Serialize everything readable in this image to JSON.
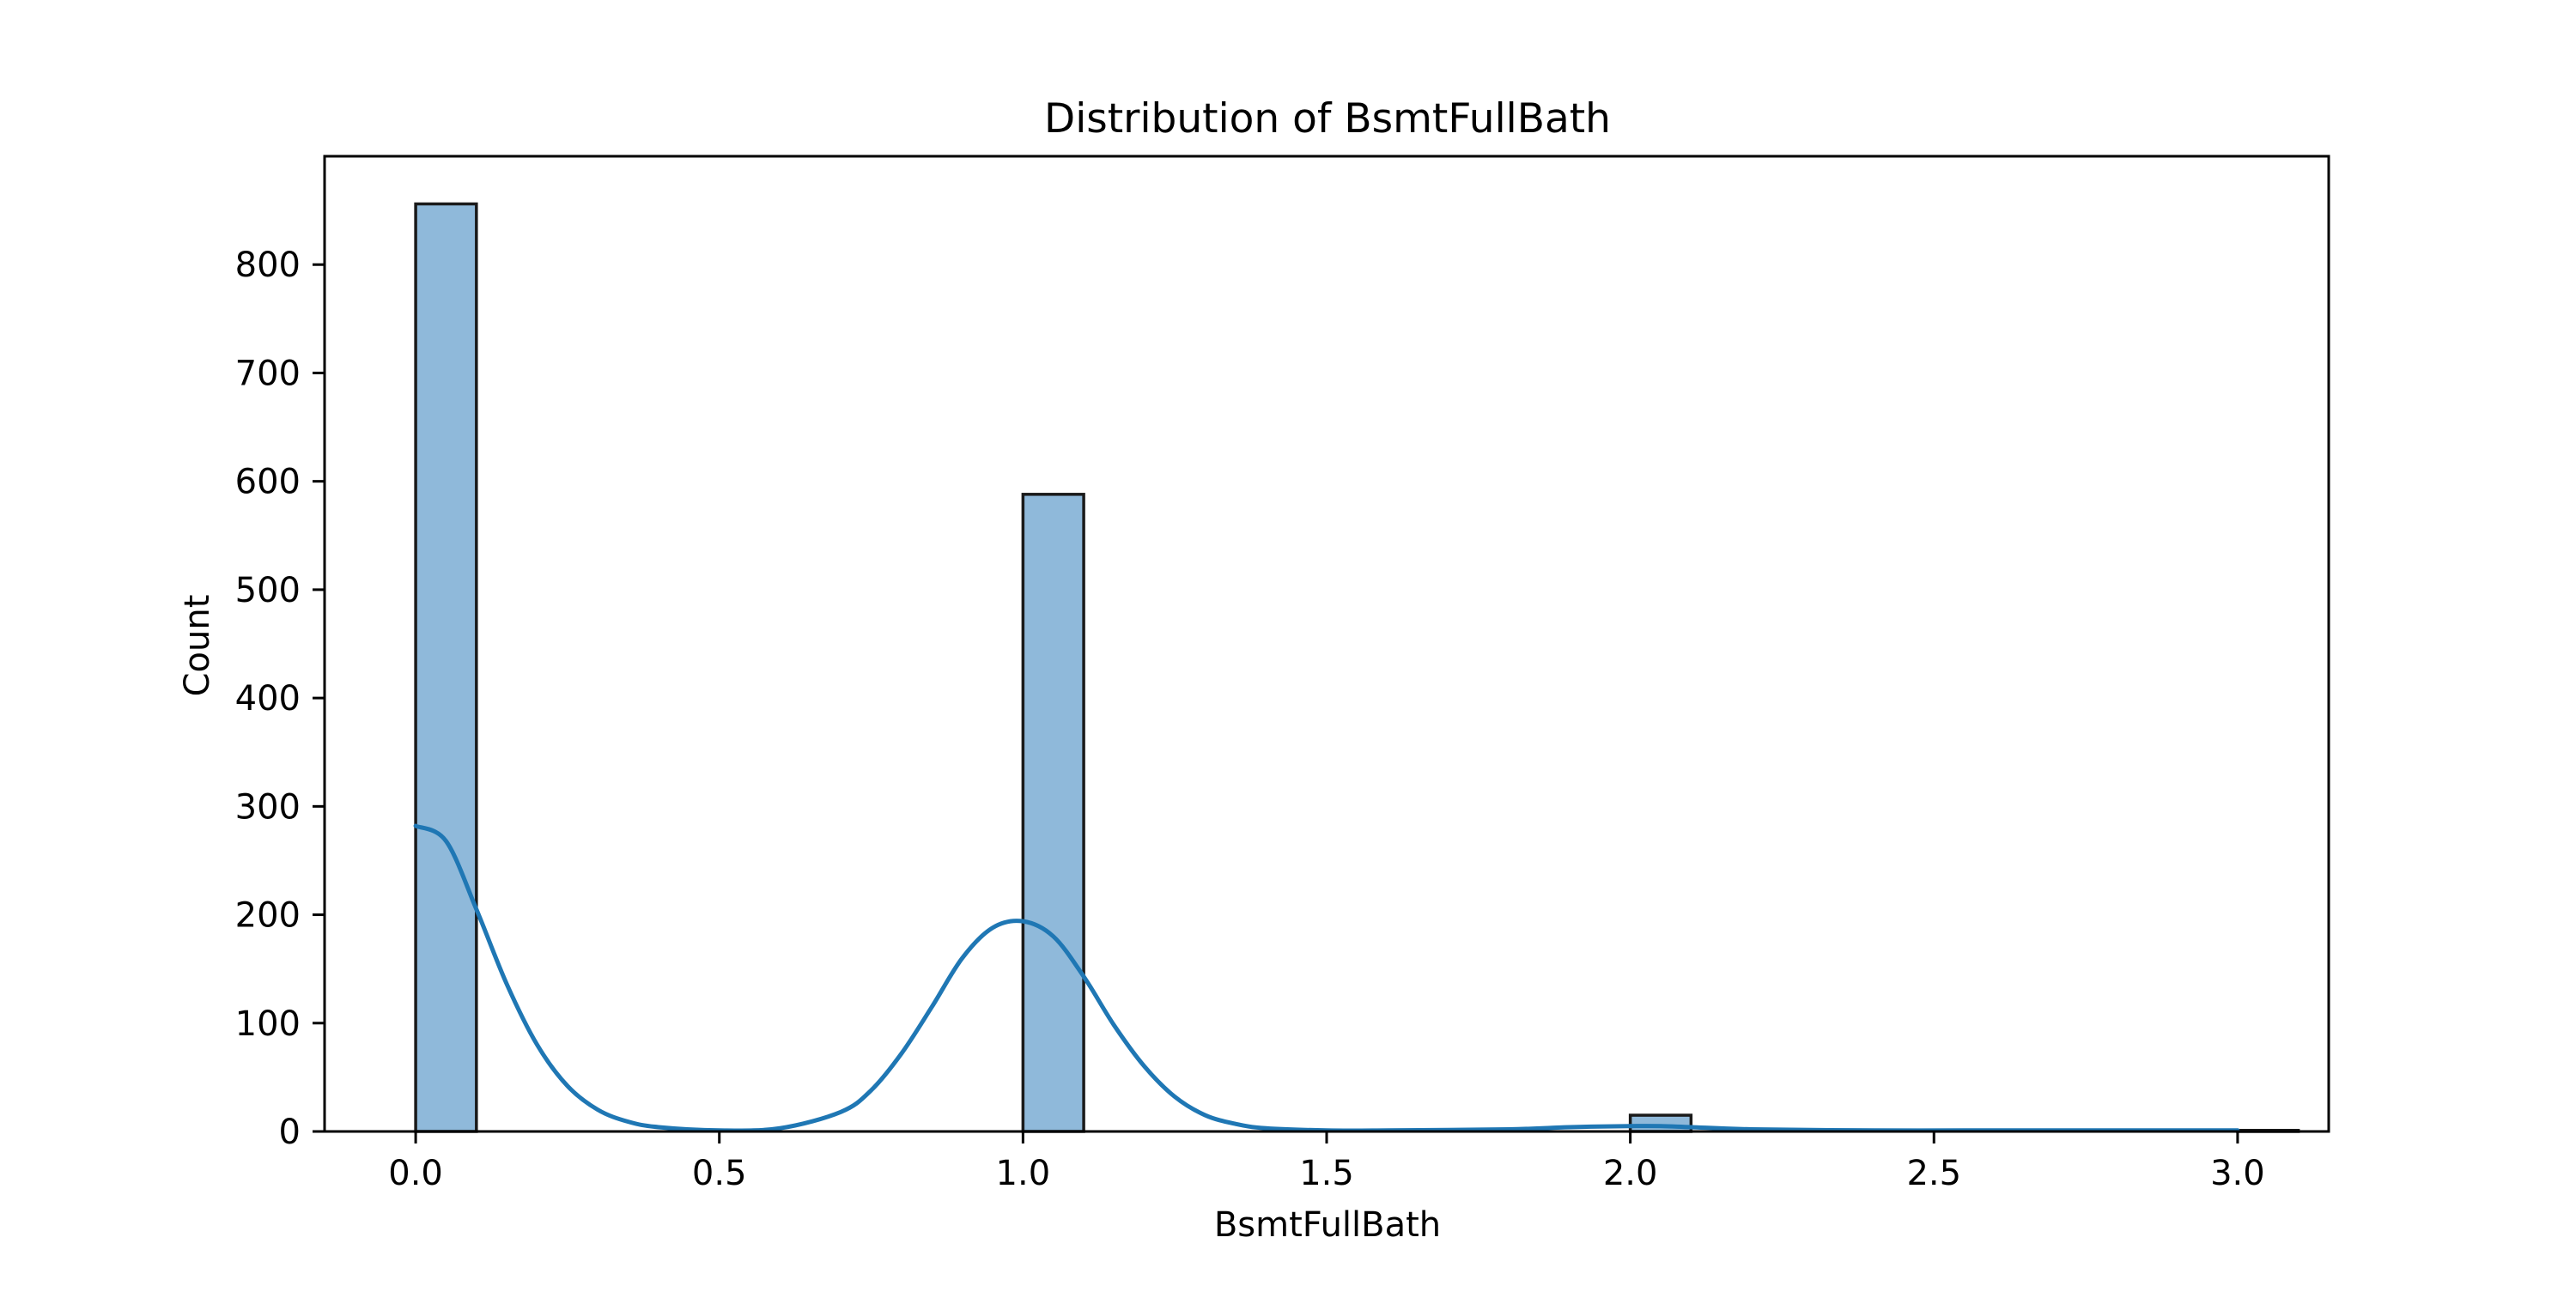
{
  "chart_data": {
    "type": "bar",
    "title": "Distribution of BsmtFullBath",
    "xlabel": "BsmtFullBath",
    "ylabel": "Count",
    "xlim": [
      -0.15,
      3.15
    ],
    "ylim": [
      0,
      900
    ],
    "xticks": [
      0.0,
      0.5,
      1.0,
      1.5,
      2.0,
      2.5,
      3.0
    ],
    "xtick_labels": [
      "0.0",
      "0.5",
      "1.0",
      "1.5",
      "2.0",
      "2.5",
      "3.0"
    ],
    "yticks": [
      0,
      100,
      200,
      300,
      400,
      500,
      600,
      700,
      800
    ],
    "ytick_labels": [
      "0",
      "100",
      "200",
      "300",
      "400",
      "500",
      "600",
      "700",
      "800"
    ],
    "bins": [
      {
        "x0": 0.0,
        "x1": 0.1,
        "count": 856
      },
      {
        "x0": 1.0,
        "x1": 1.1,
        "count": 588
      },
      {
        "x0": 2.0,
        "x1": 2.1,
        "count": 15
      },
      {
        "x0": 3.0,
        "x1": 3.1,
        "count": 1
      }
    ],
    "kde": {
      "x": [
        0.0,
        0.05,
        0.1,
        0.15,
        0.2,
        0.25,
        0.3,
        0.35,
        0.4,
        0.5,
        0.6,
        0.7,
        0.75,
        0.8,
        0.85,
        0.9,
        0.95,
        1.0,
        1.05,
        1.1,
        1.15,
        1.2,
        1.25,
        1.3,
        1.35,
        1.4,
        1.5,
        1.6,
        1.8,
        1.9,
        2.0,
        2.05,
        2.1,
        2.2,
        2.4,
        2.6,
        2.8,
        3.0
      ],
      "y": [
        282,
        268,
        205,
        136,
        80,
        42,
        20,
        9,
        4,
        1,
        3,
        18,
        38,
        72,
        115,
        160,
        188,
        194,
        180,
        143,
        98,
        60,
        32,
        15,
        7,
        3,
        1,
        1,
        2,
        4,
        5,
        5,
        4,
        2,
        1,
        1,
        1,
        1
      ]
    },
    "colors": {
      "bar_fill": "#8fb9da",
      "bar_edge": "#1a1a1a",
      "kde_line": "#1f77b4"
    },
    "grid": false,
    "legend": "none"
  }
}
